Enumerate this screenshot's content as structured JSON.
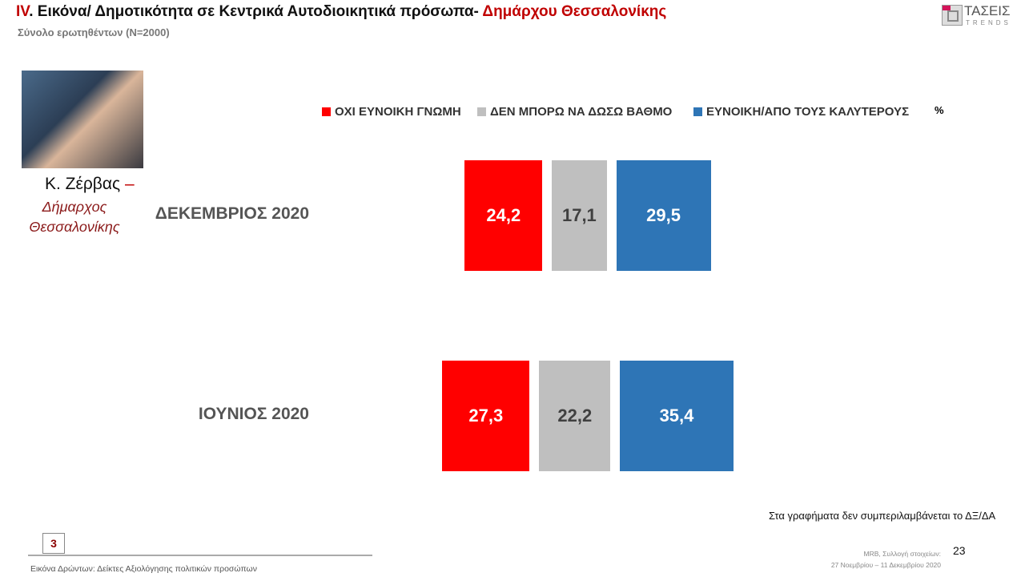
{
  "header": {
    "title_prefix": "IV",
    "title_main": ". Εικόνα/ Δημοτικότητα σε Κεντρικά Αυτοδιοικητικά πρόσωπα- ",
    "title_highlight": "Δημάρχου Θεσσαλονίκης",
    "subtitle": "Σύνολο ερωτηθέντων (N=2000)",
    "logo_text": "ΤΑΣΕΙΣ",
    "logo_sub": "TRENDS"
  },
  "person": {
    "name": "Κ. Ζέρβας",
    "dash": "–",
    "role": "Δήμαρχος Θεσσαλονίκης"
  },
  "chart_data": {
    "type": "bar",
    "unit": "%",
    "categories": [
      "ΔΕΚΕΜΒΡΙΟΣ 2020",
      "ΙΟΥΝΙΟΣ 2020"
    ],
    "series": [
      {
        "name": "ΟΧΙ ΕΥΝΟΙΚΗ ΓΝΩΜΗ",
        "color": "#ff0000",
        "label_color": "#ffffff",
        "values": [
          24.2,
          27.3
        ],
        "labels": [
          "24,2",
          "27,3"
        ]
      },
      {
        "name": "ΔΕΝ ΜΠΟΡΩ ΝΑ ΔΩΣΩ ΒΑΘΜΟ",
        "color": "#bfbfbf",
        "label_color": "#404040",
        "values": [
          17.1,
          22.2
        ],
        "labels": [
          "17,1",
          "22,2"
        ]
      },
      {
        "name": "ΕΥΝΟΙΚΗ/ΑΠΟ ΤΟΥΣ ΚΑΛΥΤΕΡΟΥΣ",
        "color": "#2e75b6",
        "label_color": "#ffffff",
        "values": [
          29.5,
          35.4
        ],
        "labels": [
          "29,5",
          "35,4"
        ]
      }
    ],
    "legend_position": "top"
  },
  "footer": {
    "note": "Στα γραφήματα δεν συμπεριλαμβάνεται το ΔΞ/ΔΑ",
    "source_line1": "MRB, Συλλογή στοιχείων:",
    "source_line2": "27 Νοεμβρίου –  11 Δεκεμβρίου 2020",
    "page_number": "23",
    "section_badge": "3",
    "section_title": "Εικόνα Δρώντων: Δείκτες Αξιολόγησης πολιτικών προσώπων"
  }
}
